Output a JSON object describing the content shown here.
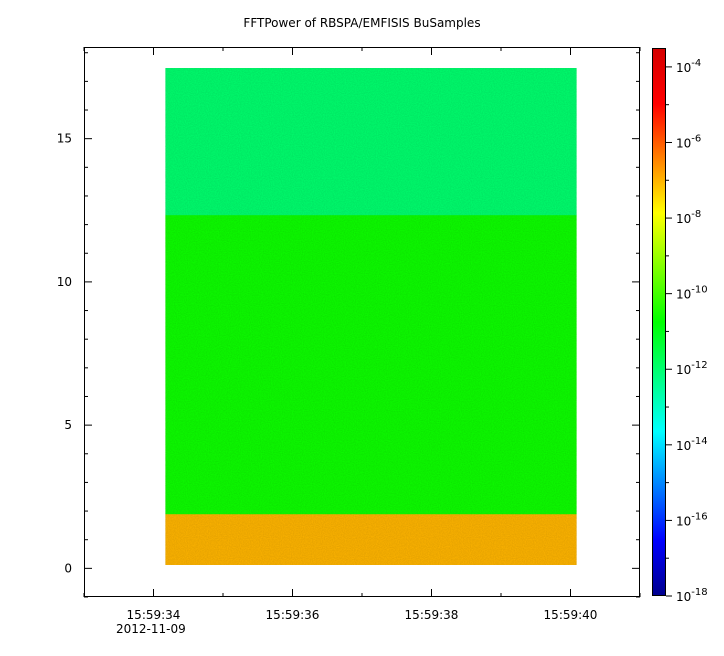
{
  "chart_data": {
    "type": "heatmap",
    "title": "FFTPower of RBSPA/EMFISIS  BuSamples",
    "xlabel": "",
    "ylabel": "",
    "x_tick_labels": [
      "15:59:34",
      "15:59:36",
      "15:59:38",
      "15:59:40"
    ],
    "x_tick_sublabel": "2012-11-09",
    "x_range_seconds": [
      33.0,
      41.0
    ],
    "x_tick_seconds": [
      34,
      36,
      38,
      40
    ],
    "y_tick_labels": [
      "0",
      "5",
      "10",
      "15"
    ],
    "y_tick_values": [
      0,
      5,
      10,
      15
    ],
    "y_range": [
      -1.0,
      18.2
    ],
    "data_x_range_seconds": [
      34.15,
      40.1
    ],
    "data_y_range": [
      0.0,
      17.45
    ],
    "colorbar": {
      "scale": "log",
      "range_exponent": [
        -18,
        -3.5
      ],
      "tick_labels": [
        {
          "base": "10",
          "exp": "-4"
        },
        {
          "base": "10",
          "exp": "-6"
        },
        {
          "base": "10",
          "exp": "-8"
        },
        {
          "base": "10",
          "exp": "-10"
        },
        {
          "base": "10",
          "exp": "-12"
        },
        {
          "base": "10",
          "exp": "-14"
        },
        {
          "base": "10",
          "exp": "-16"
        },
        {
          "base": "10",
          "exp": "-18"
        }
      ],
      "colors": [
        "#00008f",
        "#0000ff",
        "#0080ff",
        "#00ffff",
        "#00ff80",
        "#00ff00",
        "#80ff00",
        "#ffff00",
        "#ff8000",
        "#ff0000",
        "#d40000"
      ]
    },
    "bands": [
      {
        "y_from": 0.0,
        "y_to": 1.8,
        "level_exponent": -7.0
      },
      {
        "y_from": 1.8,
        "y_to": 12.3,
        "level_exponent": -10.6
      },
      {
        "y_from": 12.3,
        "y_to": 17.45,
        "level_exponent": -12.0
      }
    ]
  }
}
